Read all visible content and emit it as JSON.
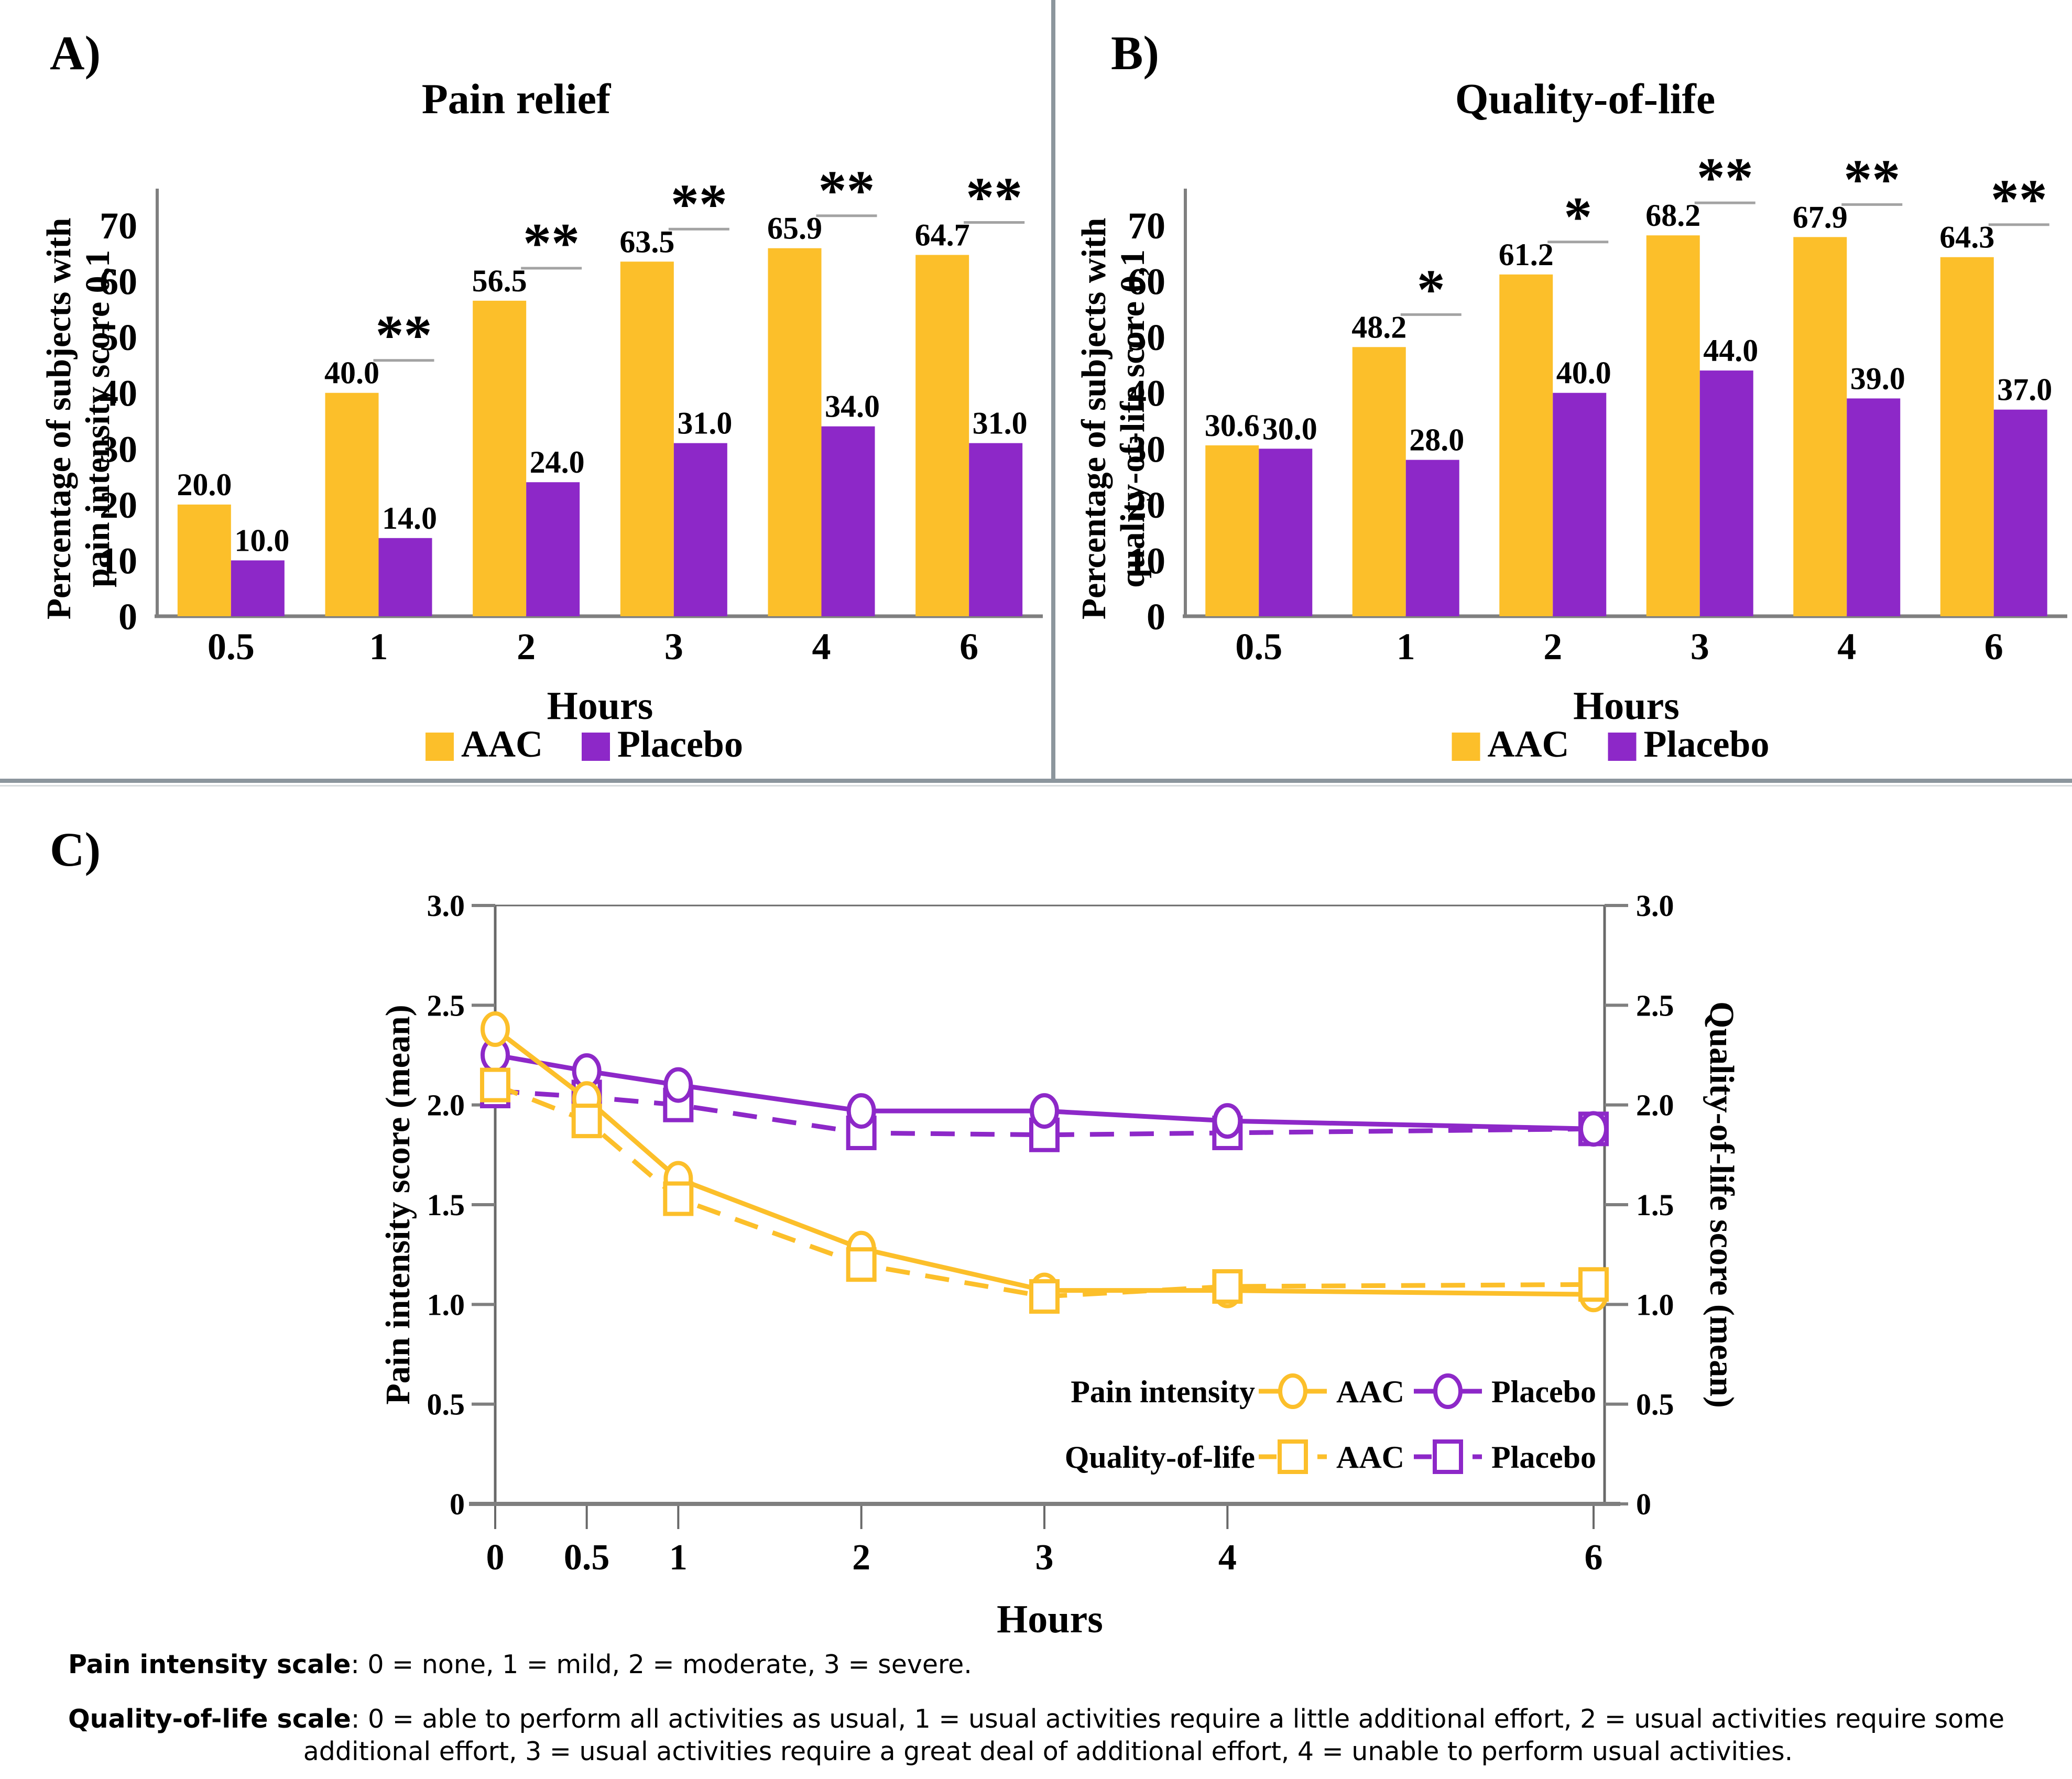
{
  "panel_labels": {
    "a": "A)",
    "b": "B)",
    "c": "C)"
  },
  "colors": {
    "aac": "#FCBF2A",
    "placebo": "#8D28C8",
    "axis_gray": "#7F7F7F",
    "spine_dark": "#696969",
    "sig_line": "#A3A3A3",
    "divider": "#8C969D",
    "text": "#000000"
  },
  "legend": {
    "aac": "AAC",
    "placebo": "Placebo"
  },
  "chart_data": [
    {
      "type": "bar",
      "panel": "A",
      "title": "Pain relief",
      "ylabel": "Percentage of subjects with pain intensity score 0,1",
      "ylabel_lines": [
        "Percentage of subjects with",
        "pain intensity score 0,1"
      ],
      "xlabel": "Hours",
      "ylim": [
        0,
        70
      ],
      "yticks": [
        "0",
        "10",
        "20",
        "30",
        "40",
        "50",
        "60",
        "70"
      ],
      "grid": false,
      "legend_position": "bottom",
      "categories": [
        "0.5",
        "1",
        "2",
        "3",
        "4",
        "6"
      ],
      "series": [
        {
          "name": "AAC",
          "values": [
            20.0,
            40.0,
            56.5,
            63.5,
            65.9,
            64.7
          ]
        },
        {
          "name": "Placebo",
          "values": [
            10.0,
            14.0,
            24.0,
            31.0,
            34.0,
            31.0
          ]
        }
      ],
      "value_labels": {
        "aac": [
          "20.0",
          "40.0",
          "56.5",
          "63.5",
          "65.9",
          "64.7"
        ],
        "placebo": [
          "10.0",
          "14.0",
          "24.0",
          "31.0",
          "34.0",
          "31.0"
        ]
      },
      "significance": [
        "",
        "**",
        "**",
        "**",
        "**",
        "**"
      ]
    },
    {
      "type": "bar",
      "panel": "B",
      "title": "Quality-of-life",
      "ylabel": "Percentage of subjects with quality-of-life score 0,1",
      "ylabel_lines": [
        "Percentage of subjects with",
        "quality-of-life score 0,1"
      ],
      "xlabel": "Hours",
      "ylim": [
        0,
        70
      ],
      "yticks": [
        "0",
        "10",
        "20",
        "30",
        "40",
        "50",
        "60",
        "70"
      ],
      "grid": false,
      "legend_position": "bottom",
      "categories": [
        "0.5",
        "1",
        "2",
        "3",
        "4",
        "6"
      ],
      "series": [
        {
          "name": "AAC",
          "values": [
            30.6,
            48.2,
            61.2,
            68.2,
            67.9,
            64.3
          ]
        },
        {
          "name": "Placebo",
          "values": [
            30.0,
            28.0,
            40.0,
            44.0,
            39.0,
            37.0
          ]
        }
      ],
      "value_labels": {
        "aac": [
          "30.6",
          "48.2",
          "61.2",
          "68.2",
          "67.9",
          "64.3"
        ],
        "placebo": [
          "30.0",
          "28.0",
          "40.0",
          "44.0",
          "39.0",
          "37.0"
        ]
      },
      "significance": [
        "",
        "*",
        "*",
        "**",
        "**",
        "**"
      ]
    },
    {
      "type": "line",
      "panel": "C",
      "x": [
        0,
        0.5,
        1,
        2,
        3,
        4,
        6
      ],
      "xtick_labels": [
        "0",
        "0.5",
        "1",
        "2",
        "3",
        "4",
        "6"
      ],
      "xlabel": "Hours",
      "ylim": [
        0,
        3
      ],
      "ytick_labels": [
        "0",
        "0.5",
        "1.0",
        "1.5",
        "2.0",
        "2.5",
        "3.0"
      ],
      "ytick_values": [
        0,
        0.5,
        1.0,
        1.5,
        2.0,
        2.5,
        3.0
      ],
      "ylabel_left": "Pain intensity score (mean)",
      "ylabel_right": "Quality-of-life score (mean)",
      "grid": false,
      "legend_position": "inside-lower-right",
      "series": [
        {
          "name": "Pain intensity AAC",
          "group": "Pain intensity",
          "treatment": "AAC",
          "color": "aac",
          "line": "solid",
          "marker": "circle",
          "values": [
            2.38,
            2.03,
            1.63,
            1.28,
            1.07,
            1.07,
            1.05
          ]
        },
        {
          "name": "Pain intensity Placebo",
          "group": "Pain intensity",
          "treatment": "Placebo",
          "color": "placebo",
          "line": "solid",
          "marker": "circle",
          "values": [
            2.25,
            2.17,
            2.1,
            1.97,
            1.97,
            1.92,
            1.88
          ]
        },
        {
          "name": "Quality-of-life AAC",
          "group": "Quality-of-life",
          "treatment": "AAC",
          "color": "aac",
          "line": "dashed",
          "marker": "square",
          "values": [
            2.1,
            1.92,
            1.53,
            1.2,
            1.04,
            1.09,
            1.1
          ]
        },
        {
          "name": "Quality-of-life Placebo",
          "group": "Quality-of-life",
          "treatment": "Placebo",
          "color": "placebo",
          "line": "dashed",
          "marker": "square",
          "values": [
            2.07,
            2.04,
            2.0,
            1.86,
            1.85,
            1.86,
            1.88
          ]
        }
      ],
      "legend_rows": [
        {
          "label": "Pain intensity",
          "entries": [
            "AAC",
            "Placebo"
          ]
        },
        {
          "label": "Quality-of-life",
          "entries": [
            "AAC",
            "Placebo"
          ]
        }
      ]
    }
  ],
  "footnotes": {
    "pain_label": "Pain intensity scale",
    "pain_text": ": 0 = none, 1 = mild, 2 = moderate, 3 = severe.",
    "qol_label": "Quality-of-life scale",
    "qol_text_line1": ": 0 = able to perform all activities as usual, 1 = usual activities require a little additional effort, 2 = usual activities require some",
    "qol_text_line2": "additional effort, 3 = usual activities require a great deal of additional effort, 4 = unable to perform usual activities."
  }
}
